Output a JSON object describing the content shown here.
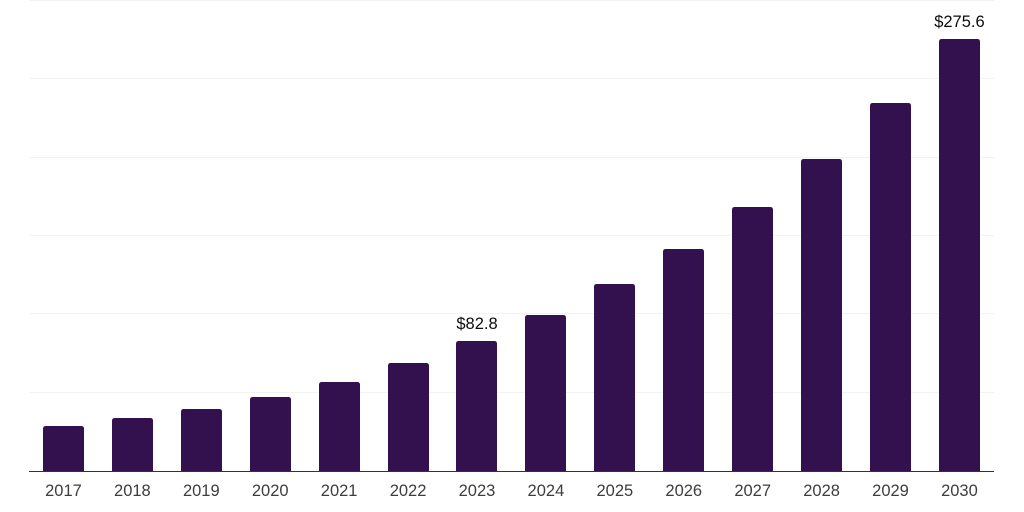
{
  "chart_data": {
    "type": "bar",
    "title": "",
    "xlabel": "",
    "ylabel": "",
    "categories": [
      "2017",
      "2018",
      "2019",
      "2020",
      "2021",
      "2022",
      "2023",
      "2024",
      "2025",
      "2026",
      "2027",
      "2028",
      "2029",
      "2030"
    ],
    "values": [
      28.6,
      33.8,
      39.7,
      47.2,
      56.9,
      68.8,
      82.8,
      99.5,
      119.3,
      141.8,
      168.3,
      199.1,
      234.7,
      275.6
    ],
    "labeled_points": [
      {
        "category": "2023",
        "label": "$82.8"
      },
      {
        "category": "2030",
        "label": "$275.6"
      }
    ],
    "ylim": [
      0,
      300
    ],
    "gridline_step": 50,
    "grid": "horizontal",
    "legend": "none",
    "colors": {
      "bar": "#33114F",
      "gridline": "#f2f2f2",
      "axis_line": "#333333",
      "tick_label": "#3d3d3d",
      "data_label": "#0d0d0d",
      "background": "#ffffff"
    }
  }
}
